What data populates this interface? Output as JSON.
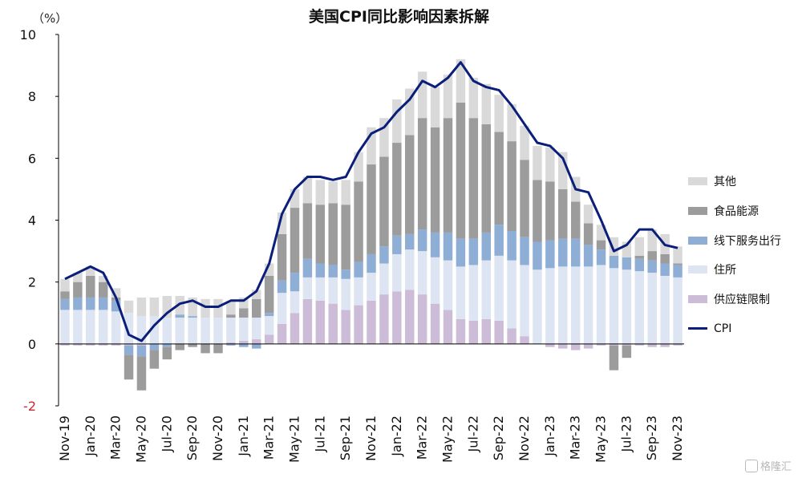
{
  "page": {
    "title": "美国CPI同比影响因素拆解",
    "unit_label": "（%）",
    "watermark": "格隆汇"
  },
  "chart_data": {
    "type": "bar",
    "stacked": true,
    "title": "美国CPI同比影响因素拆解",
    "ylabel": "（%）",
    "ylim": [
      -2,
      10
    ],
    "yticks": [
      -2,
      0,
      2,
      4,
      6,
      8,
      10
    ],
    "legend_position": "right",
    "categories": [
      "Nov-19",
      "Dec-19",
      "Jan-20",
      "Feb-20",
      "Mar-20",
      "Apr-20",
      "May-20",
      "Jun-20",
      "Jul-20",
      "Aug-20",
      "Sep-20",
      "Oct-20",
      "Nov-20",
      "Dec-20",
      "Jan-21",
      "Feb-21",
      "Mar-21",
      "Apr-21",
      "May-21",
      "Jun-21",
      "Jul-21",
      "Aug-21",
      "Sep-21",
      "Oct-21",
      "Nov-21",
      "Dec-21",
      "Jan-22",
      "Feb-22",
      "Mar-22",
      "Apr-22",
      "May-22",
      "Jun-22",
      "Jul-22",
      "Aug-22",
      "Sep-22",
      "Oct-22",
      "Nov-22",
      "Dec-22",
      "Jan-23",
      "Feb-23",
      "Mar-23",
      "Apr-23",
      "May-23",
      "Jun-23",
      "Jul-23",
      "Aug-23",
      "Sep-23",
      "Oct-23",
      "Nov-23"
    ],
    "tick_labels": [
      "Nov-19",
      "Jan-20",
      "Mar-20",
      "May-20",
      "Jul-20",
      "Sep-20",
      "Nov-20",
      "Jan-21",
      "Mar-21",
      "May-21",
      "Jul-21",
      "Sep-21",
      "Nov-21",
      "Jan-22",
      "Mar-22",
      "May-22",
      "Jul-22",
      "Sep-22",
      "Nov-22",
      "Jan-23",
      "Mar-23",
      "May-23",
      "Jul-23",
      "Sep-23",
      "Nov-23"
    ],
    "series": [
      {
        "name": "供应链限制",
        "kind": "bar",
        "color": "#cdbcd8",
        "values": [
          -0.05,
          -0.05,
          -0.05,
          -0.05,
          -0.05,
          -0.05,
          -0.05,
          0,
          0,
          0,
          0,
          0,
          0,
          0.05,
          0.1,
          0.15,
          0.3,
          0.65,
          1.0,
          1.45,
          1.4,
          1.3,
          1.1,
          1.25,
          1.4,
          1.6,
          1.7,
          1.75,
          1.6,
          1.3,
          1.1,
          0.8,
          0.75,
          0.8,
          0.75,
          0.5,
          0.25,
          0,
          -0.1,
          -0.15,
          -0.2,
          -0.15,
          -0.05,
          -0.05,
          -0.05,
          -0.05,
          -0.1,
          -0.1,
          -0.05
        ]
      },
      {
        "name": "住所",
        "kind": "bar",
        "color": "#dde5f2",
        "values": [
          1.1,
          1.1,
          1.1,
          1.1,
          1.05,
          1.0,
          0.9,
          0.9,
          0.85,
          0.85,
          0.85,
          0.85,
          0.85,
          0.8,
          0.75,
          0.7,
          0.6,
          1.0,
          0.7,
          0.7,
          0.75,
          0.85,
          1.0,
          0.9,
          0.9,
          1.0,
          1.2,
          1.3,
          1.4,
          1.5,
          1.6,
          1.7,
          1.8,
          1.9,
          2.1,
          2.2,
          2.3,
          2.4,
          2.45,
          2.5,
          2.5,
          2.5,
          2.55,
          2.45,
          2.4,
          2.35,
          2.3,
          2.2,
          2.15
        ]
      },
      {
        "name": "线下服务出行",
        "kind": "bar",
        "color": "#8eaed6",
        "values": [
          0.35,
          0.4,
          0.4,
          0.4,
          0.35,
          -0.3,
          -0.35,
          -0.2,
          -0.1,
          0.1,
          0.05,
          0,
          0,
          -0.05,
          -0.1,
          -0.15,
          0.1,
          0.4,
          0.6,
          0.6,
          0.45,
          0.4,
          0.3,
          0.5,
          0.6,
          0.55,
          0.6,
          0.5,
          0.7,
          0.8,
          0.9,
          0.9,
          0.85,
          0.9,
          1.0,
          0.95,
          0.9,
          0.9,
          0.9,
          0.9,
          0.9,
          0.7,
          0.5,
          0.4,
          0.4,
          0.4,
          0.4,
          0.4,
          0.4
        ]
      },
      {
        "name": "食品能源",
        "kind": "bar",
        "color": "#9c9c9c",
        "values": [
          0.25,
          0.5,
          0.7,
          0.5,
          0.1,
          -0.8,
          -1.1,
          -0.6,
          -0.4,
          -0.2,
          -0.1,
          -0.3,
          -0.3,
          0.1,
          0.3,
          0.6,
          1.2,
          1.5,
          2.1,
          1.8,
          1.9,
          2.0,
          2.1,
          2.6,
          2.9,
          2.9,
          3.0,
          3.2,
          3.6,
          3.4,
          3.7,
          4.4,
          3.9,
          3.5,
          3.0,
          2.9,
          2.5,
          2.0,
          1.9,
          1.6,
          1.2,
          0.7,
          0.3,
          -0.8,
          -0.4,
          0.1,
          0.3,
          0.3,
          0.05
        ]
      },
      {
        "name": "其他",
        "kind": "bar",
        "color": "#d9d9d9",
        "values": [
          0.4,
          0.3,
          0.3,
          0.2,
          0.3,
          0.4,
          0.6,
          0.6,
          0.7,
          0.6,
          0.6,
          0.6,
          0.6,
          0.45,
          0.35,
          0.3,
          0.4,
          0.7,
          0.6,
          0.85,
          0.8,
          0.7,
          0.8,
          0.95,
          1.2,
          1.25,
          1.4,
          1.5,
          1.5,
          1.3,
          1.4,
          1.4,
          1.3,
          1.3,
          1.2,
          1.2,
          1.1,
          1.1,
          1.1,
          1.2,
          0.8,
          0.6,
          0.5,
          0.6,
          0.5,
          0.6,
          0.7,
          0.65,
          0.55
        ]
      },
      {
        "name": "CPI",
        "kind": "line",
        "color": "#0a1e7a",
        "values": [
          2.1,
          2.3,
          2.5,
          2.3,
          1.5,
          0.3,
          0.1,
          0.6,
          1.0,
          1.3,
          1.4,
          1.2,
          1.2,
          1.4,
          1.4,
          1.7,
          2.6,
          4.2,
          5.0,
          5.4,
          5.4,
          5.3,
          5.4,
          6.2,
          6.8,
          7.0,
          7.5,
          7.9,
          8.5,
          8.3,
          8.6,
          9.1,
          8.5,
          8.3,
          8.2,
          7.7,
          7.1,
          6.5,
          6.4,
          6.0,
          5.0,
          4.9,
          4.0,
          3.0,
          3.2,
          3.7,
          3.7,
          3.2,
          3.1
        ]
      }
    ],
    "legend_order": [
      "其他",
      "食品能源",
      "线下服务出行",
      "住所",
      "供应链限制",
      "CPI"
    ]
  }
}
